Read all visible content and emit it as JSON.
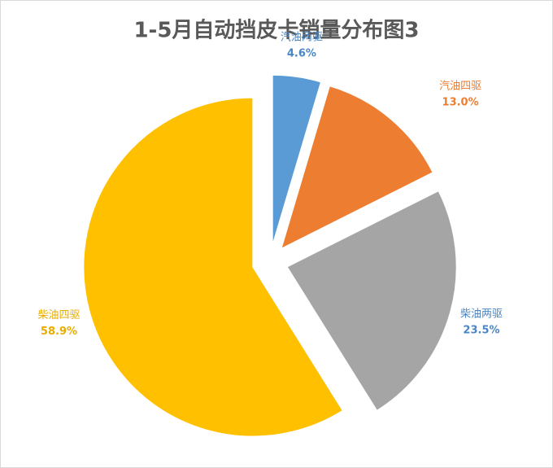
{
  "chart_data": {
    "type": "pie",
    "title": "1-5月自动挡皮卡销量分布图3",
    "categories": [
      "汽油两驱",
      "汽油四驱",
      "柴油两驱",
      "柴油四驱"
    ],
    "values": [
      4.6,
      13.0,
      23.5,
      58.9
    ],
    "value_labels": [
      "4.6%",
      "13.0%",
      "23.5%",
      "58.9%"
    ],
    "colors": [
      "#5b9bd5",
      "#ed7d31",
      "#a5a5a5",
      "#ffc000"
    ],
    "label_colors": [
      "#4a86c5",
      "#ed7d31",
      "#4a86c5",
      "#e6ad00"
    ]
  }
}
